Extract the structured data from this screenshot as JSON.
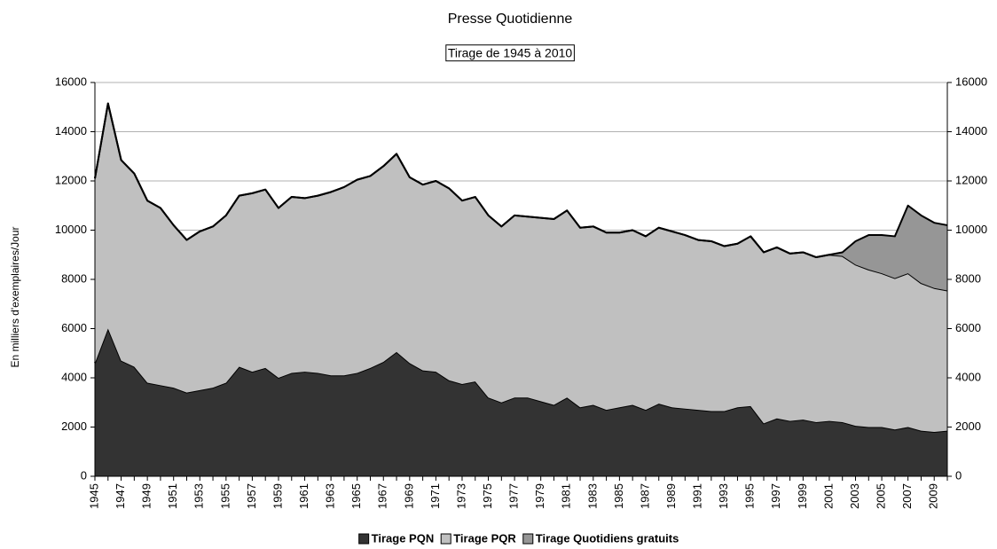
{
  "chart_data": {
    "type": "stacked_area",
    "title": "Presse Quotidienne",
    "subtitle": "Tirage de 1945 à 2010",
    "y_label": "En milliers d'exemplaires/Jour",
    "categories": [
      "1945",
      null,
      "1947",
      null,
      "1949",
      null,
      "1951",
      null,
      "1953",
      null,
      "1955",
      null,
      "1957",
      null,
      "1959",
      null,
      "1961",
      null,
      "1963",
      null,
      "1965",
      null,
      "1967",
      null,
      "1969",
      null,
      "1971",
      null,
      "1973",
      null,
      "1975",
      null,
      "1977",
      null,
      "1979",
      null,
      "1981",
      null,
      "1983",
      null,
      "1985",
      null,
      "1987",
      null,
      "1989",
      null,
      "1991",
      null,
      "1993",
      null,
      "1995",
      null,
      "1997",
      null,
      "1999",
      null,
      "2001",
      null,
      "2003",
      null,
      "2005",
      null,
      "2007",
      null,
      "2009",
      null
    ],
    "series": [
      {
        "name": "Tirage PQN",
        "color": "#333333",
        "values": [
          4600,
          6000,
          4700,
          4450,
          3800,
          3700,
          3600,
          3400,
          3500,
          3600,
          3800,
          4450,
          4250,
          4400,
          4000,
          4200,
          4250,
          4200,
          4100,
          4100,
          4200,
          4400,
          4650,
          5050,
          4600,
          4300,
          4250,
          3900,
          3750,
          3850,
          3200,
          3000,
          3200,
          3200,
          3050,
          2900,
          3200,
          2800,
          2900,
          2700,
          2800,
          2900,
          2700,
          2950,
          2800,
          2750,
          2700,
          2650,
          2650,
          2800,
          2850,
          2150,
          2350,
          2250,
          2300,
          2200,
          2250,
          2200,
          2050,
          2000,
          2000,
          1900,
          2000,
          1850,
          1800,
          1850
        ]
      },
      {
        "name": "Tirage PQR",
        "color": "#c0c0c0",
        "values": [
          7500,
          9150,
          8150,
          7850,
          7400,
          7200,
          6600,
          6200,
          6450,
          6550,
          6800,
          6950,
          7250,
          7250,
          6900,
          7150,
          7050,
          7200,
          7450,
          7650,
          7850,
          7800,
          7950,
          8050,
          7550,
          7550,
          7750,
          7800,
          7450,
          7500,
          7400,
          7150,
          7400,
          7350,
          7450,
          7550,
          7600,
          7300,
          7250,
          7200,
          7100,
          7100,
          7050,
          7150,
          7150,
          7050,
          6900,
          6900,
          6700,
          6650,
          6900,
          6950,
          6950,
          6800,
          6800,
          6700,
          6750,
          6750,
          6550,
          6400,
          6250,
          6150,
          6250,
          6000,
          5850,
          5700
        ]
      },
      {
        "name": "Tirage Quotidiens gratuits",
        "color": "#969696",
        "values": [
          0,
          0,
          0,
          0,
          0,
          0,
          0,
          0,
          0,
          0,
          0,
          0,
          0,
          0,
          0,
          0,
          0,
          0,
          0,
          0,
          0,
          0,
          0,
          0,
          0,
          0,
          0,
          0,
          0,
          0,
          0,
          0,
          0,
          0,
          0,
          0,
          0,
          0,
          0,
          0,
          0,
          0,
          0,
          0,
          0,
          0,
          0,
          0,
          0,
          0,
          0,
          0,
          0,
          0,
          0,
          0,
          0,
          150,
          950,
          1400,
          1550,
          1700,
          2750,
          2750,
          2650,
          2650
        ]
      }
    ],
    "ylim": [
      0,
      16000
    ],
    "yticks": [
      0,
      2000,
      4000,
      6000,
      8000,
      10000,
      12000,
      14000,
      16000
    ],
    "y2lim": [
      0,
      16000
    ],
    "y2ticks": [
      0,
      2000,
      4000,
      6000,
      8000,
      10000,
      12000,
      14000,
      16000
    ],
    "grid": true,
    "legend": "bottom"
  }
}
